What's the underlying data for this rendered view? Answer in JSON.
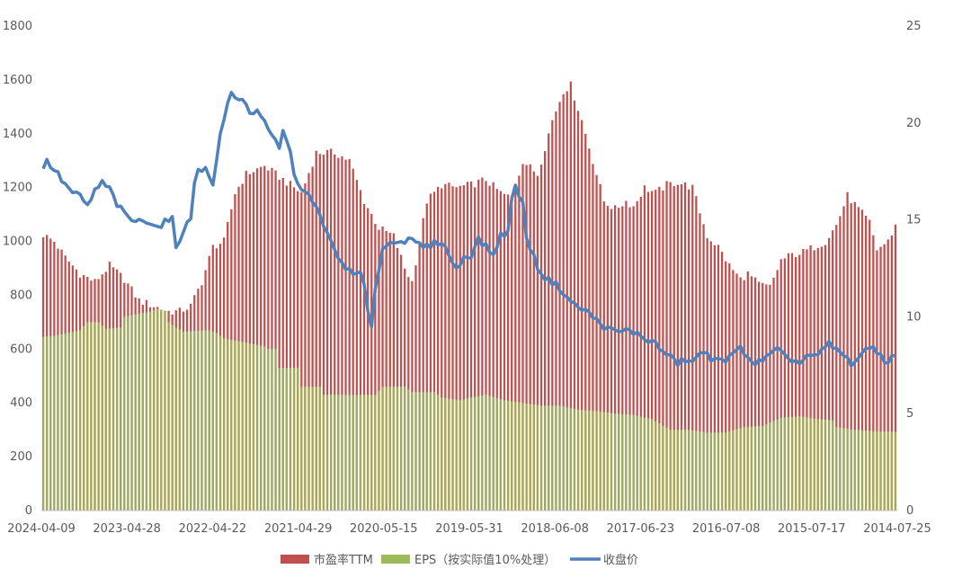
{
  "chart_data": {
    "type": "bar",
    "x_ticks": [
      "2024-04-09",
      "2023-04-28",
      "2022-04-22",
      "2021-04-29",
      "2020-05-15",
      "2019-05-31",
      "2018-06-08",
      "2017-06-23",
      "2016-07-08",
      "2015-07-17",
      "2014-07-25"
    ],
    "y_left_ticks": [
      "0",
      "200",
      "400",
      "600",
      "800",
      "1000",
      "1200",
      "1400",
      "1600",
      "1800"
    ],
    "y_right_ticks": [
      "0",
      "5",
      "10",
      "15",
      "20",
      "25"
    ],
    "y_left_lim": [
      0,
      1800
    ],
    "y_right_lim": [
      0,
      25
    ],
    "grid": false,
    "legend_position": "bottom",
    "series": [
      {
        "name": "市盈率TTM",
        "color": "#c0504d",
        "kind": "bar",
        "axis": "left",
        "keypoints": [
          [
            0,
            1025
          ],
          [
            3,
            1000
          ],
          [
            6,
            940
          ],
          [
            10,
            880
          ],
          [
            14,
            850
          ],
          [
            18,
            910
          ],
          [
            22,
            860
          ],
          [
            26,
            780
          ],
          [
            30,
            760
          ],
          [
            34,
            740
          ],
          [
            37,
            740
          ],
          [
            40,
            760
          ],
          [
            43,
            850
          ],
          [
            46,
            980
          ],
          [
            49,
            1000
          ],
          [
            52,
            1180
          ],
          [
            55,
            1250
          ],
          [
            60,
            1280
          ],
          [
            65,
            1230
          ],
          [
            70,
            1180
          ],
          [
            74,
            1330
          ],
          [
            79,
            1330
          ],
          [
            83,
            1300
          ],
          [
            87,
            1150
          ],
          [
            91,
            1050
          ],
          [
            95,
            1020
          ],
          [
            98,
            900
          ],
          [
            100,
            850
          ],
          [
            104,
            1150
          ],
          [
            108,
            1210
          ],
          [
            112,
            1200
          ],
          [
            116,
            1210
          ],
          [
            120,
            1230
          ],
          [
            124,
            1180
          ],
          [
            127,
            1160
          ],
          [
            130,
            1300
          ],
          [
            134,
            1250
          ],
          [
            138,
            1450
          ],
          [
            141,
            1560
          ],
          [
            143,
            1580
          ],
          [
            146,
            1450
          ],
          [
            149,
            1300
          ],
          [
            152,
            1150
          ],
          [
            155,
            1120
          ],
          [
            158,
            1150
          ],
          [
            160,
            1130
          ],
          [
            163,
            1200
          ],
          [
            166,
            1180
          ],
          [
            169,
            1210
          ],
          [
            172,
            1220
          ],
          [
            176,
            1200
          ],
          [
            180,
            1020
          ],
          [
            183,
            980
          ],
          [
            186,
            910
          ],
          [
            189,
            860
          ],
          [
            191,
            880
          ],
          [
            194,
            840
          ],
          [
            197,
            830
          ],
          [
            200,
            930
          ],
          [
            203,
            950
          ],
          [
            206,
            960
          ],
          [
            209,
            980
          ],
          [
            212,
            1000
          ],
          [
            215,
            1060
          ],
          [
            218,
            1170
          ],
          [
            221,
            1120
          ],
          [
            224,
            1070
          ],
          [
            226,
            970
          ],
          [
            229,
            1000
          ],
          [
            231,
            1060
          ]
        ]
      },
      {
        "name": "EPS（按实际值10%处理）",
        "color": "#9bbb59",
        "kind": "bar",
        "axis": "left",
        "keypoints": [
          [
            0,
            645
          ],
          [
            3,
            650
          ],
          [
            5,
            655
          ],
          [
            10,
            670
          ],
          [
            12,
            700
          ],
          [
            15,
            700
          ],
          [
            17,
            675
          ],
          [
            21,
            680
          ],
          [
            22,
            720
          ],
          [
            29,
            740
          ],
          [
            31,
            750
          ],
          [
            33,
            740
          ],
          [
            34,
            700
          ],
          [
            36,
            680
          ],
          [
            38,
            665
          ],
          [
            45,
            670
          ],
          [
            47,
            660
          ],
          [
            49,
            640
          ],
          [
            60,
            610
          ],
          [
            61,
            600
          ],
          [
            63,
            600
          ],
          [
            64,
            530
          ],
          [
            69,
            530
          ],
          [
            70,
            460
          ],
          [
            75,
            460
          ],
          [
            76,
            430
          ],
          [
            90,
            430
          ],
          [
            92,
            460
          ],
          [
            98,
            460
          ],
          [
            100,
            440
          ],
          [
            106,
            440
          ],
          [
            108,
            420
          ],
          [
            113,
            410
          ],
          [
            116,
            420
          ],
          [
            120,
            430
          ],
          [
            125,
            410
          ],
          [
            130,
            400
          ],
          [
            135,
            390
          ],
          [
            140,
            390
          ],
          [
            145,
            375
          ],
          [
            150,
            370
          ],
          [
            155,
            360
          ],
          [
            160,
            355
          ],
          [
            165,
            340
          ],
          [
            170,
            300
          ],
          [
            175,
            300
          ],
          [
            180,
            290
          ],
          [
            185,
            290
          ],
          [
            190,
            310
          ],
          [
            195,
            315
          ],
          [
            200,
            345
          ],
          [
            205,
            350
          ],
          [
            210,
            340
          ],
          [
            214,
            335
          ],
          [
            215,
            310
          ],
          [
            220,
            300
          ],
          [
            225,
            295
          ],
          [
            231,
            293
          ]
        ]
      },
      {
        "name": "收盘价",
        "color": "#4f81bd",
        "kind": "line",
        "axis": "right",
        "keypoints": [
          [
            0,
            17.7
          ],
          [
            1,
            18.0
          ],
          [
            3,
            17.6
          ],
          [
            6,
            16.8
          ],
          [
            8,
            16.4
          ],
          [
            10,
            16.2
          ],
          [
            12,
            15.7
          ],
          [
            14,
            16.5
          ],
          [
            16,
            16.9
          ],
          [
            18,
            16.6
          ],
          [
            20,
            15.8
          ],
          [
            22,
            15.3
          ],
          [
            24,
            15.0
          ],
          [
            26,
            14.9
          ],
          [
            28,
            15.0
          ],
          [
            30,
            14.8
          ],
          [
            31,
            14.6
          ],
          [
            33,
            14.9
          ],
          [
            35,
            15.0
          ],
          [
            36,
            13.6
          ],
          [
            38,
            14.5
          ],
          [
            40,
            15.0
          ],
          [
            41,
            17.0
          ],
          [
            42,
            17.7
          ],
          [
            44,
            17.6
          ],
          [
            46,
            16.8
          ],
          [
            47,
            18.2
          ],
          [
            48,
            19.3
          ],
          [
            50,
            21.0
          ],
          [
            51,
            21.5
          ],
          [
            53,
            21.3
          ],
          [
            55,
            21.0
          ],
          [
            56,
            20.6
          ],
          [
            58,
            20.5
          ],
          [
            60,
            20.0
          ],
          [
            62,
            19.3
          ],
          [
            64,
            18.8
          ],
          [
            65,
            19.5
          ],
          [
            66,
            19.2
          ],
          [
            68,
            17.5
          ],
          [
            70,
            16.5
          ],
          [
            72,
            16.2
          ],
          [
            74,
            15.6
          ],
          [
            76,
            14.8
          ],
          [
            78,
            13.8
          ],
          [
            80,
            13.0
          ],
          [
            82,
            12.6
          ],
          [
            84,
            12.1
          ],
          [
            86,
            12.3
          ],
          [
            87,
            11.5
          ],
          [
            88,
            10.2
          ],
          [
            89,
            9.6
          ],
          [
            90,
            11.5
          ],
          [
            91,
            12.5
          ],
          [
            92,
            13.5
          ],
          [
            94,
            13.8
          ],
          [
            96,
            14.0
          ],
          [
            98,
            13.9
          ],
          [
            100,
            13.9
          ],
          [
            102,
            13.7
          ],
          [
            104,
            13.6
          ],
          [
            106,
            13.8
          ],
          [
            108,
            13.9
          ],
          [
            110,
            13.2
          ],
          [
            112,
            12.4
          ],
          [
            114,
            13.1
          ],
          [
            116,
            13.2
          ],
          [
            118,
            14.0
          ],
          [
            120,
            13.6
          ],
          [
            122,
            13.2
          ],
          [
            124,
            14.2
          ],
          [
            126,
            14.4
          ],
          [
            127,
            16.0
          ],
          [
            128,
            16.8
          ],
          [
            130,
            15.8
          ],
          [
            131,
            14.2
          ],
          [
            132,
            13.5
          ],
          [
            134,
            12.6
          ],
          [
            136,
            12.0
          ],
          [
            138,
            11.8
          ],
          [
            140,
            11.5
          ],
          [
            142,
            11.0
          ],
          [
            144,
            10.6
          ],
          [
            146,
            10.4
          ],
          [
            148,
            10.2
          ],
          [
            150,
            9.8
          ],
          [
            152,
            9.5
          ],
          [
            154,
            9.3
          ],
          [
            156,
            9.2
          ],
          [
            158,
            9.3
          ],
          [
            160,
            9.2
          ],
          [
            162,
            9.0
          ],
          [
            164,
            8.8
          ],
          [
            166,
            8.6
          ],
          [
            168,
            8.2
          ],
          [
            170,
            7.9
          ],
          [
            172,
            7.6
          ],
          [
            174,
            7.8
          ],
          [
            176,
            7.6
          ],
          [
            178,
            8.2
          ],
          [
            180,
            8.0
          ],
          [
            181,
            7.6
          ],
          [
            183,
            8.0
          ],
          [
            185,
            7.8
          ],
          [
            187,
            8.0
          ],
          [
            189,
            8.4
          ],
          [
            191,
            8.0
          ],
          [
            193,
            7.5
          ],
          [
            195,
            7.8
          ],
          [
            197,
            8.0
          ],
          [
            199,
            8.3
          ],
          [
            201,
            7.9
          ],
          [
            203,
            7.8
          ],
          [
            205,
            7.6
          ],
          [
            207,
            8.0
          ],
          [
            209,
            7.9
          ],
          [
            211,
            8.2
          ],
          [
            213,
            8.6
          ],
          [
            215,
            8.3
          ],
          [
            217,
            8.0
          ],
          [
            219,
            7.6
          ],
          [
            221,
            7.9
          ],
          [
            223,
            8.2
          ],
          [
            225,
            8.5
          ],
          [
            227,
            8.0
          ],
          [
            229,
            7.6
          ],
          [
            231,
            8.1
          ]
        ]
      }
    ]
  }
}
